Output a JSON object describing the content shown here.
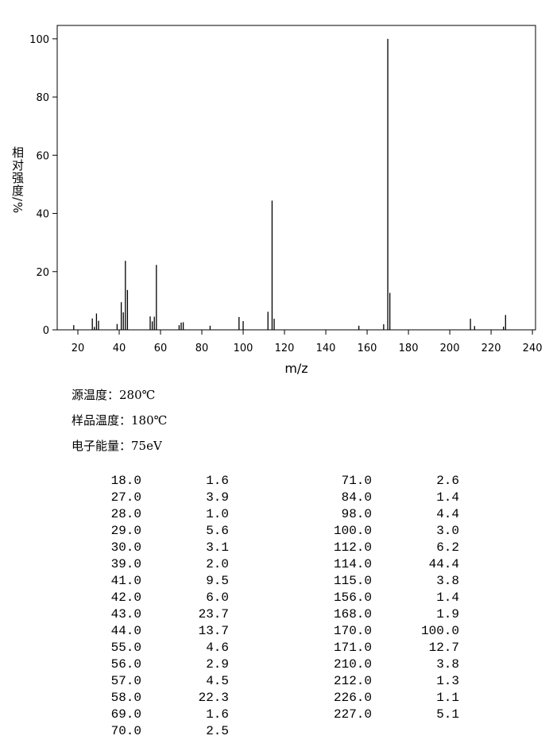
{
  "chart_data": {
    "type": "bar",
    "x_label": "m/z",
    "y_label": "相对强度/%",
    "x": [
      18,
      27,
      28,
      29,
      30,
      39,
      41,
      42,
      43,
      44,
      55,
      56,
      57,
      58,
      69,
      70,
      71,
      84,
      98,
      100,
      112,
      114,
      115,
      156,
      168,
      170,
      171,
      210,
      212,
      226,
      227
    ],
    "values": [
      1.6,
      3.9,
      1.0,
      5.6,
      3.1,
      2.0,
      9.5,
      6.0,
      23.7,
      13.7,
      4.6,
      2.9,
      4.5,
      22.3,
      1.6,
      2.5,
      2.6,
      1.4,
      4.4,
      3.0,
      6.2,
      44.4,
      3.8,
      1.4,
      1.9,
      100.0,
      12.7,
      3.8,
      1.3,
      1.1,
      5.1
    ],
    "color": "#000000",
    "xlim": [
      10,
      241.5
    ],
    "ylim": [
      0,
      104.6
    ],
    "xticks": [
      20,
      40,
      60,
      80,
      100,
      120,
      140,
      160,
      180,
      200,
      220,
      240
    ],
    "yticks": [
      0,
      20,
      40,
      60,
      80,
      100
    ]
  },
  "info": [
    "源温度：280℃",
    "样品温度：180℃",
    "电子能量：75eV"
  ],
  "table": {
    "left": [
      [
        "18.0",
        "1.6"
      ],
      [
        "27.0",
        "3.9"
      ],
      [
        "28.0",
        "1.0"
      ],
      [
        "29.0",
        "5.6"
      ],
      [
        "30.0",
        "3.1"
      ],
      [
        "39.0",
        "2.0"
      ],
      [
        "41.0",
        "9.5"
      ],
      [
        "42.0",
        "6.0"
      ],
      [
        "43.0",
        "23.7"
      ],
      [
        "44.0",
        "13.7"
      ],
      [
        "55.0",
        "4.6"
      ],
      [
        "56.0",
        "2.9"
      ],
      [
        "57.0",
        "4.5"
      ],
      [
        "58.0",
        "22.3"
      ],
      [
        "69.0",
        "1.6"
      ],
      [
        "70.0",
        "2.5"
      ]
    ],
    "right": [
      [
        "71.0",
        "2.6"
      ],
      [
        "84.0",
        "1.4"
      ],
      [
        "98.0",
        "4.4"
      ],
      [
        "100.0",
        "3.0"
      ],
      [
        "112.0",
        "6.2"
      ],
      [
        "114.0",
        "44.4"
      ],
      [
        "115.0",
        "3.8"
      ],
      [
        "156.0",
        "1.4"
      ],
      [
        "168.0",
        "1.9"
      ],
      [
        "170.0",
        "100.0"
      ],
      [
        "171.0",
        "12.7"
      ],
      [
        "210.0",
        "3.8"
      ],
      [
        "212.0",
        "1.3"
      ],
      [
        "226.0",
        "1.1"
      ],
      [
        "227.0",
        "5.1"
      ]
    ]
  }
}
